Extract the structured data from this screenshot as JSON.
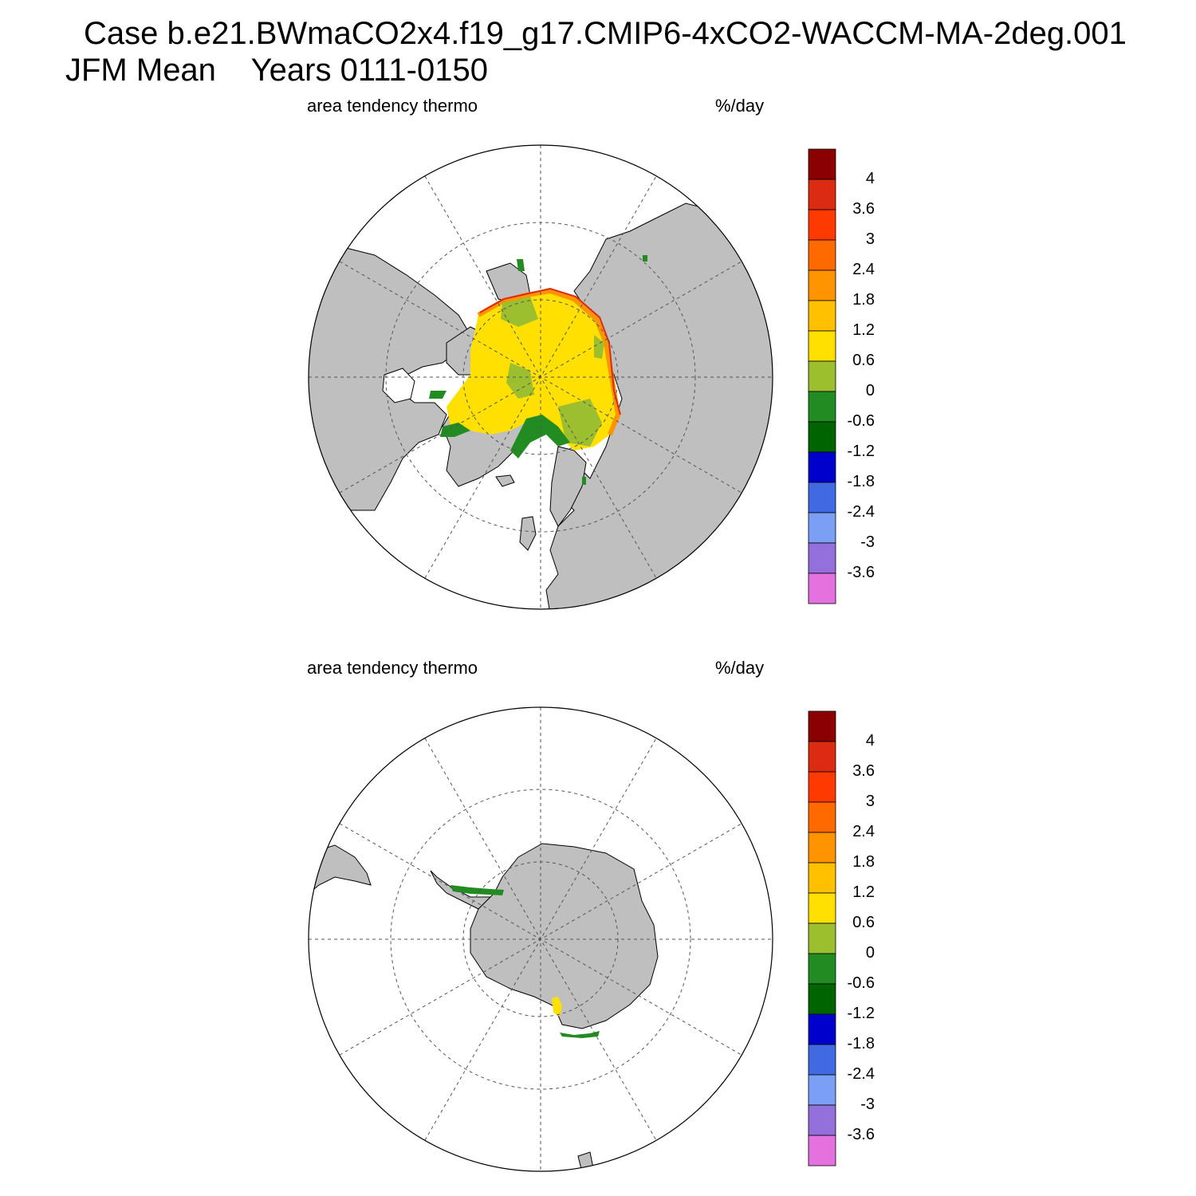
{
  "title": {
    "line1": "Case b.e21.BWmaCO2x4.f19_g17.CMIP6-4xCO2-WACCM-MA-2deg.001",
    "line2": "JFM Mean    Years 0111-0150"
  },
  "panels": [
    {
      "left_label": "area tendency thermo",
      "right_label": "%/day",
      "hemisphere": "north"
    },
    {
      "left_label": "area tendency thermo",
      "right_label": "%/day",
      "hemisphere": "south"
    }
  ],
  "colorbar": {
    "colors": [
      "#8b0000",
      "#dc2b13",
      "#ff3a00",
      "#ff6a00",
      "#ff9400",
      "#ffc000",
      "#ffe000",
      "#9cbf2f",
      "#228b22",
      "#006400",
      "#0000cd",
      "#4169e1",
      "#7b9ff5",
      "#9370db",
      "#e571de"
    ],
    "labels": [
      "4",
      "3.6",
      "3",
      "2.4",
      "1.8",
      "1.2",
      "0.6",
      "0",
      "-0.6",
      "-1.2",
      "-1.8",
      "-2.4",
      "-3",
      "-3.6"
    ]
  },
  "colors": {
    "land": "#bfbfbf",
    "ocean": "#ffffff",
    "grid": "#555555"
  }
}
